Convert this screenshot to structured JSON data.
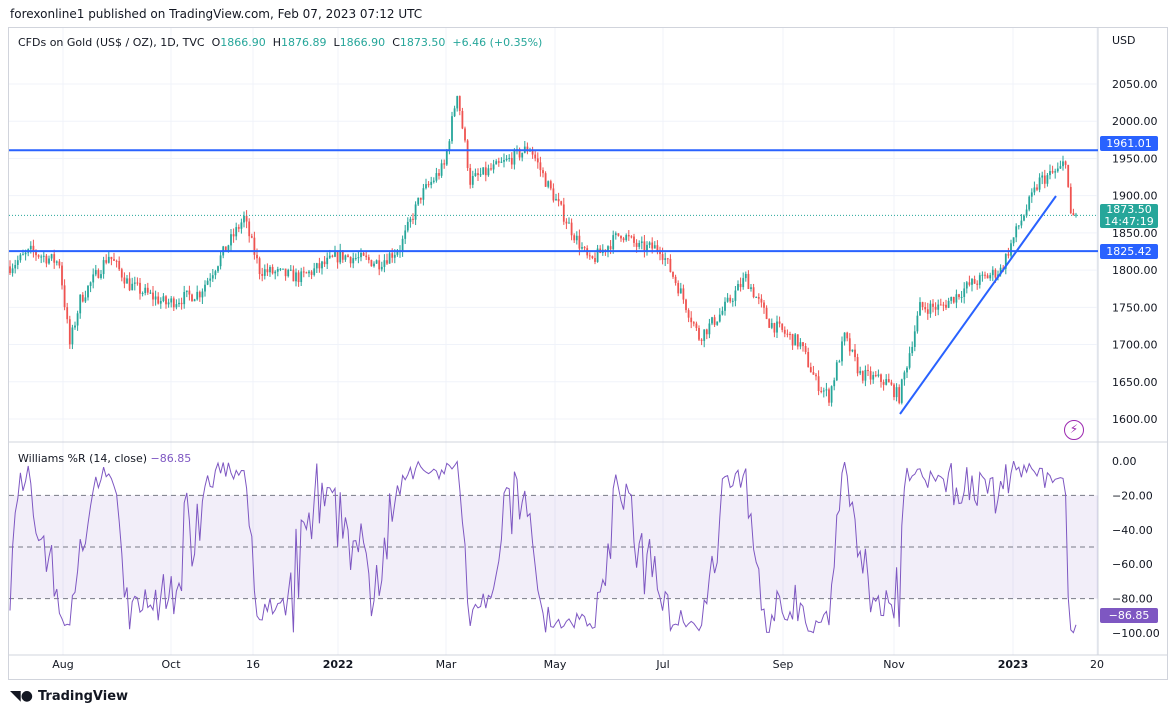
{
  "header": {
    "published": "forexonline1 published on TradingView.com, Feb 07, 2023 07:12 UTC"
  },
  "legend": {
    "symbol": "CFDs on Gold (US$ / OZ), 1D, TVC",
    "o_label": "O",
    "o": "1866.90",
    "h_label": "H",
    "h": "1876.89",
    "l_label": "L",
    "l": "1866.90",
    "c_label": "C",
    "c": "1873.50",
    "change": "+6.46 (+0.35%)"
  },
  "price_axis": {
    "currency": "USD",
    "ticks": [
      "2050.00",
      "2000.00",
      "1950.00",
      "1900.00",
      "1850.00",
      "1800.00",
      "1750.00",
      "1700.00",
      "1650.00",
      "1600.00"
    ]
  },
  "tags": {
    "resistance": "1961.01",
    "support": "1825.42",
    "last_price": "1873.50",
    "countdown": "14:47:19",
    "wr_value": "−86.85"
  },
  "indicator": {
    "label": "Williams %R (14, close)",
    "value": "−86.85",
    "ticks": [
      "0.00",
      "−20.00",
      "−40.00",
      "−60.00",
      "−80.00",
      "−100.00"
    ]
  },
  "time_axis": [
    "Aug",
    "Oct",
    "16",
    "2022",
    "Mar",
    "May",
    "Jul",
    "Sep",
    "Nov",
    "2023",
    "20"
  ],
  "footer": {
    "brand": "TradingView"
  },
  "colors": {
    "up": "#26a69a",
    "down": "#ef5350",
    "line": "#2962ff",
    "wr": "#7e57c2"
  },
  "chart_data": {
    "type": "candlestick",
    "price_path": [
      [
        0,
        1805
      ],
      [
        8,
        1825
      ],
      [
        19,
        1810
      ],
      [
        23,
        1700
      ],
      [
        27,
        1760
      ],
      [
        38,
        1820
      ],
      [
        46,
        1780
      ],
      [
        60,
        1755
      ],
      [
        73,
        1770
      ],
      [
        90,
        1870
      ],
      [
        96,
        1800
      ],
      [
        112,
        1790
      ],
      [
        127,
        1820
      ],
      [
        142,
        1810
      ],
      [
        150,
        1830
      ],
      [
        158,
        1900
      ],
      [
        167,
        1940
      ],
      [
        172,
        2040
      ],
      [
        177,
        1920
      ],
      [
        188,
        1940
      ],
      [
        200,
        1965
      ],
      [
        206,
        1920
      ],
      [
        215,
        1860
      ],
      [
        223,
        1810
      ],
      [
        235,
        1850
      ],
      [
        242,
        1830
      ],
      [
        250,
        1830
      ],
      [
        258,
        1770
      ],
      [
        265,
        1710
      ],
      [
        273,
        1740
      ],
      [
        283,
        1790
      ],
      [
        292,
        1730
      ],
      [
        304,
        1700
      ],
      [
        310,
        1650
      ],
      [
        315,
        1630
      ],
      [
        321,
        1710
      ],
      [
        327,
        1660
      ],
      [
        337,
        1650
      ],
      [
        342,
        1630
      ],
      [
        350,
        1750
      ],
      [
        358,
        1750
      ],
      [
        369,
        1780
      ],
      [
        381,
        1800
      ],
      [
        388,
        1860
      ],
      [
        396,
        1920
      ],
      [
        404,
        1935
      ],
      [
        406,
        1950
      ],
      [
        408,
        1870
      ],
      [
        410,
        1873.5
      ]
    ],
    "horizontal_levels": [
      1961.01,
      1825.42
    ],
    "ylim": [
      1575,
      2085
    ]
  }
}
